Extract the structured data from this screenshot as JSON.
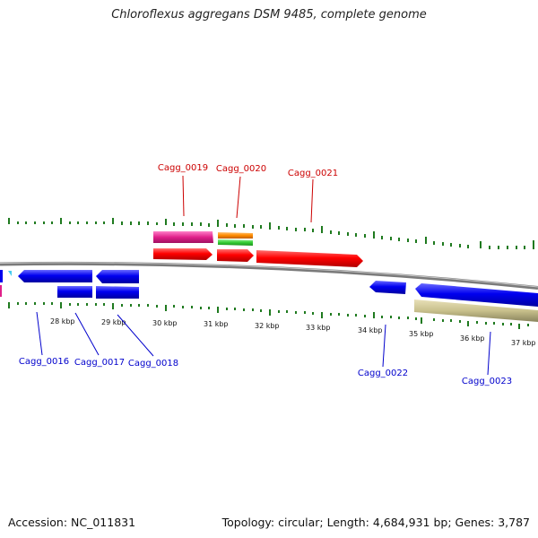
{
  "header": {
    "title": "Chloroflexus aggregans DSM 9485, complete genome"
  },
  "footer": {
    "accession": "Accession: NC_011831",
    "topology": "Topology: circular; Length: 4,684,931 bp; Genes: 3,787"
  },
  "map": {
    "scale_labels": [
      "28 kbp",
      "29 kbp",
      "30 kbp",
      "31 kbp",
      "32 kbp",
      "33 kbp",
      "34 kbp",
      "35 kbp",
      "36 kbp",
      "37 kbp"
    ],
    "forward_genes": [
      "Cagg_0019",
      "Cagg_0020",
      "Cagg_0021"
    ],
    "reverse_genes": [
      "Cagg_0016",
      "Cagg_0017",
      "Cagg_0018",
      "Cagg_0022",
      "Cagg_0023"
    ],
    "colors": {
      "forward_label": "#cc0000",
      "reverse_label": "#0000cc",
      "tick": "#1f7a1f",
      "backbone": "#7a7a7a",
      "cds_forward": "#ff0000",
      "cds_reverse": "#0000ee",
      "magenta": "#e0208a",
      "orange": "#ff8c00",
      "green": "#33cc33",
      "khaki": "#c8c08c",
      "cyan": "#44ccee"
    }
  }
}
